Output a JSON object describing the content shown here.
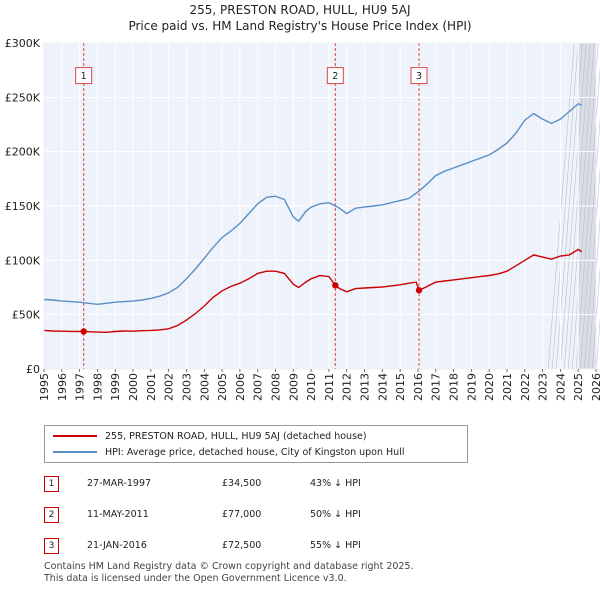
{
  "title_line1": "255, PRESTON ROAD, HULL, HU9 5AJ",
  "title_line2": "Price paid vs. HM Land Registry's House Price Index (HPI)",
  "chart_data": {
    "type": "line",
    "xlabel": "",
    "ylabel": "",
    "xlim": [
      1995,
      2026
    ],
    "ylim": [
      0,
      300000
    ],
    "y_ticks": [
      0,
      50000,
      100000,
      150000,
      200000,
      250000,
      300000
    ],
    "y_tick_labels": [
      "£0",
      "£50K",
      "£100K",
      "£150K",
      "£200K",
      "£250K",
      "£300K"
    ],
    "x_ticks": [
      1995,
      1996,
      1997,
      1998,
      1999,
      2000,
      2001,
      2002,
      2003,
      2004,
      2005,
      2006,
      2007,
      2008,
      2009,
      2010,
      2011,
      2012,
      2013,
      2014,
      2015,
      2016,
      2017,
      2018,
      2019,
      2020,
      2021,
      2022,
      2023,
      2024,
      2025,
      2026
    ],
    "grid": true,
    "colors": {
      "property": "#cc0000",
      "hpi": "#5b8fc7",
      "background": "#eef2fa",
      "marker_line": "#dd4444"
    },
    "series": [
      {
        "name": "255, PRESTON ROAD, HULL, HU9 5AJ (detached house)",
        "color": "#cc0000",
        "points": [
          [
            1995.0,
            35500
          ],
          [
            1995.5,
            35000
          ],
          [
            1996.0,
            34800
          ],
          [
            1996.5,
            34600
          ],
          [
            1997.23,
            34500
          ],
          [
            1997.6,
            34200
          ],
          [
            1998.0,
            34000
          ],
          [
            1998.5,
            33800
          ],
          [
            1999.0,
            34500
          ],
          [
            1999.5,
            35000
          ],
          [
            2000.0,
            34800
          ],
          [
            2000.5,
            35200
          ],
          [
            2001.0,
            35500
          ],
          [
            2001.5,
            36000
          ],
          [
            2002.0,
            37000
          ],
          [
            2002.5,
            40000
          ],
          [
            2003.0,
            45000
          ],
          [
            2003.5,
            51000
          ],
          [
            2004.0,
            58000
          ],
          [
            2004.5,
            66000
          ],
          [
            2005.0,
            72000
          ],
          [
            2005.5,
            76000
          ],
          [
            2006.0,
            79000
          ],
          [
            2006.5,
            83000
          ],
          [
            2007.0,
            88000
          ],
          [
            2007.5,
            90000
          ],
          [
            2008.0,
            90000
          ],
          [
            2008.5,
            88000
          ],
          [
            2009.0,
            78000
          ],
          [
            2009.3,
            75000
          ],
          [
            2009.7,
            80000
          ],
          [
            2010.0,
            83000
          ],
          [
            2010.5,
            86000
          ],
          [
            2011.0,
            85000
          ],
          [
            2011.36,
            77000
          ],
          [
            2011.6,
            74000
          ],
          [
            2012.0,
            71000
          ],
          [
            2012.5,
            74000
          ],
          [
            2013.0,
            74500
          ],
          [
            2013.5,
            75000
          ],
          [
            2014.0,
            75500
          ],
          [
            2014.5,
            76500
          ],
          [
            2015.0,
            77500
          ],
          [
            2015.5,
            79000
          ],
          [
            2015.9,
            80000
          ],
          [
            2016.06,
            72500
          ],
          [
            2016.4,
            75000
          ],
          [
            2017.0,
            80000
          ],
          [
            2017.5,
            81000
          ],
          [
            2018.0,
            82000
          ],
          [
            2018.5,
            83000
          ],
          [
            2019.0,
            84000
          ],
          [
            2019.5,
            85000
          ],
          [
            2020.0,
            86000
          ],
          [
            2020.5,
            87500
          ],
          [
            2021.0,
            90000
          ],
          [
            2021.5,
            95000
          ],
          [
            2022.0,
            100000
          ],
          [
            2022.5,
            105000
          ],
          [
            2023.0,
            103000
          ],
          [
            2023.5,
            101000
          ],
          [
            2024.0,
            104000
          ],
          [
            2024.5,
            105000
          ],
          [
            2025.0,
            110000
          ],
          [
            2025.2,
            108000
          ]
        ]
      },
      {
        "name": "HPI: Average price, detached house, City of Kingston upon Hull",
        "color": "#5b8fc7",
        "points": [
          [
            1995.0,
            64000
          ],
          [
            1995.5,
            63500
          ],
          [
            1996.0,
            62500
          ],
          [
            1996.5,
            62000
          ],
          [
            1997.0,
            61500
          ],
          [
            1997.5,
            60500
          ],
          [
            1998.0,
            59500
          ],
          [
            1998.5,
            60500
          ],
          [
            1999.0,
            61500
          ],
          [
            1999.5,
            62000
          ],
          [
            2000.0,
            62500
          ],
          [
            2000.5,
            63500
          ],
          [
            2001.0,
            65000
          ],
          [
            2001.5,
            67000
          ],
          [
            2002.0,
            70000
          ],
          [
            2002.5,
            75000
          ],
          [
            2003.0,
            83000
          ],
          [
            2003.5,
            92000
          ],
          [
            2004.0,
            102000
          ],
          [
            2004.5,
            112000
          ],
          [
            2005.0,
            121000
          ],
          [
            2005.5,
            127000
          ],
          [
            2006.0,
            134000
          ],
          [
            2006.5,
            143000
          ],
          [
            2007.0,
            152000
          ],
          [
            2007.5,
            158000
          ],
          [
            2008.0,
            159000
          ],
          [
            2008.5,
            156000
          ],
          [
            2009.0,
            140000
          ],
          [
            2009.3,
            136000
          ],
          [
            2009.7,
            145000
          ],
          [
            2010.0,
            149000
          ],
          [
            2010.5,
            152000
          ],
          [
            2011.0,
            153000
          ],
          [
            2011.5,
            149000
          ],
          [
            2012.0,
            143000
          ],
          [
            2012.5,
            148000
          ],
          [
            2013.0,
            149000
          ],
          [
            2013.5,
            150000
          ],
          [
            2014.0,
            151000
          ],
          [
            2014.5,
            153000
          ],
          [
            2015.0,
            155000
          ],
          [
            2015.5,
            157000
          ],
          [
            2016.0,
            163000
          ],
          [
            2016.5,
            170000
          ],
          [
            2017.0,
            178000
          ],
          [
            2017.5,
            182000
          ],
          [
            2018.0,
            185000
          ],
          [
            2018.5,
            188000
          ],
          [
            2019.0,
            191000
          ],
          [
            2019.5,
            194000
          ],
          [
            2020.0,
            197000
          ],
          [
            2020.5,
            202000
          ],
          [
            2021.0,
            208000
          ],
          [
            2021.5,
            217000
          ],
          [
            2022.0,
            229000
          ],
          [
            2022.5,
            235000
          ],
          [
            2023.0,
            230000
          ],
          [
            2023.5,
            226000
          ],
          [
            2024.0,
            230000
          ],
          [
            2024.5,
            237000
          ],
          [
            2025.0,
            244000
          ],
          [
            2025.2,
            243000
          ]
        ]
      }
    ],
    "sales": [
      {
        "label": "1",
        "x": 1997.23,
        "value": 34500
      },
      {
        "label": "2",
        "x": 2011.36,
        "value": 77000
      },
      {
        "label": "3",
        "x": 2016.06,
        "value": 72500
      }
    ],
    "shaded_future_from": 2025.0
  },
  "legend": {
    "property_label": "255, PRESTON ROAD, HULL, HU9 5AJ (detached house)",
    "hpi_label": "HPI: Average price, detached house, City of Kingston upon Hull"
  },
  "transactions": [
    {
      "num": "1",
      "date": "27-MAR-1997",
      "price": "£34,500",
      "hpi": "43% ↓ HPI"
    },
    {
      "num": "2",
      "date": "11-MAY-2011",
      "price": "£77,000",
      "hpi": "50% ↓ HPI"
    },
    {
      "num": "3",
      "date": "21-JAN-2016",
      "price": "£72,500",
      "hpi": "55% ↓ HPI"
    }
  ],
  "footer_line1": "Contains HM Land Registry data © Crown copyright and database right 2025.",
  "footer_line2": "This data is licensed under the Open Government Licence v3.0."
}
